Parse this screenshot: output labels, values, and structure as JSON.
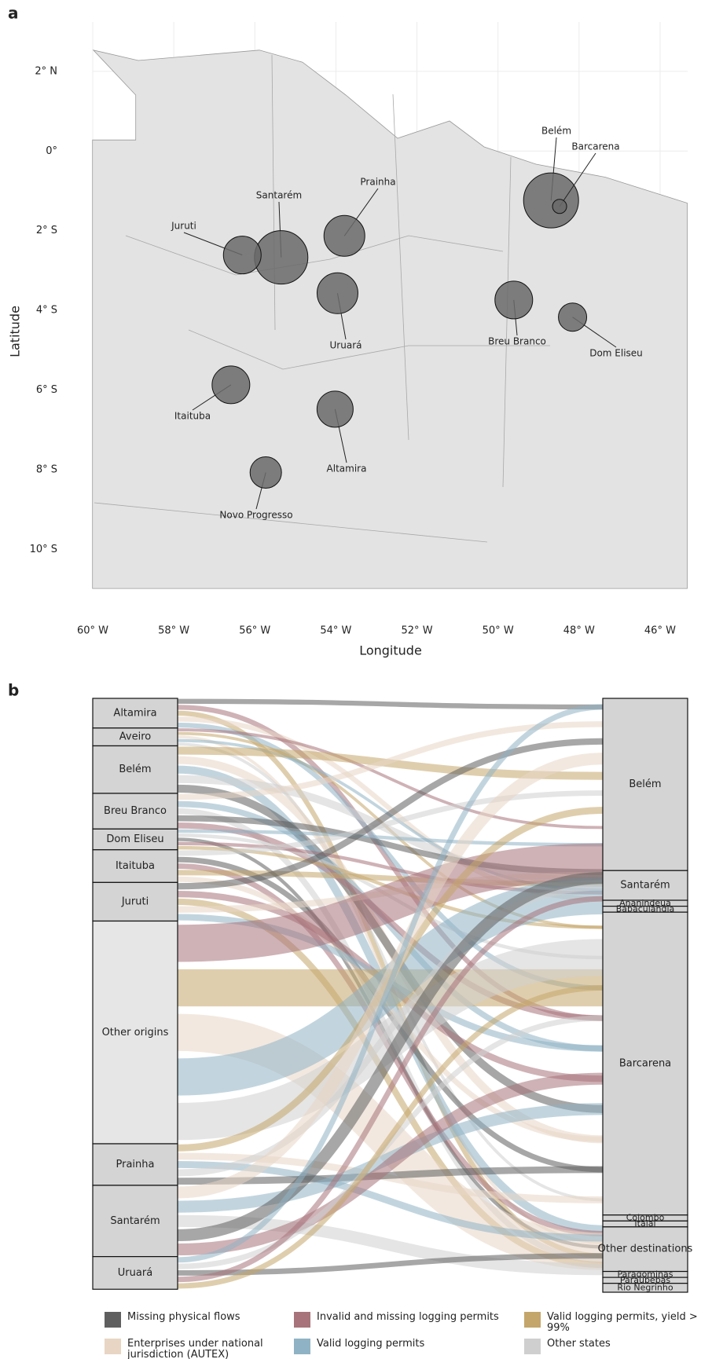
{
  "panel_a": {
    "type": "map",
    "panel_label": "a",
    "xlabel": "Longitude",
    "ylabel": "Latitude",
    "xlim": [
      -60,
      -45.32
    ],
    "ylim": [
      -10.98,
      3.24
    ],
    "grid": true,
    "xticks": [
      {
        "value": -60,
        "label": "60° W"
      },
      {
        "value": -58,
        "label": "58° W"
      },
      {
        "value": -56,
        "label": "56° W"
      },
      {
        "value": -54,
        "label": "54° W"
      },
      {
        "value": -52,
        "label": "52° W"
      },
      {
        "value": -50,
        "label": "50° W"
      },
      {
        "value": -48,
        "label": "48° W"
      },
      {
        "value": -46,
        "label": "46° W"
      }
    ],
    "yticks": [
      {
        "value": 2,
        "label": "2° N"
      },
      {
        "value": 0,
        "label": "0°"
      },
      {
        "value": -2,
        "label": "2° S"
      },
      {
        "value": -4,
        "label": "4° S"
      },
      {
        "value": -6,
        "label": "6° S"
      },
      {
        "value": -8,
        "label": "8° S"
      },
      {
        "value": -10,
        "label": "10° S"
      }
    ],
    "cities": [
      {
        "label": "Belém",
        "lon": -48.69,
        "lat": -1.24
      },
      {
        "label": "Barcarena",
        "lon": -48.48,
        "lat": -1.39
      },
      {
        "label": "Prainha",
        "lon": -53.79,
        "lat": -2.13
      },
      {
        "label": "Santarém",
        "lon": -55.35,
        "lat": -2.67
      },
      {
        "label": "Juruti",
        "lon": -56.31,
        "lat": -2.61
      },
      {
        "label": "Uruará",
        "lon": -53.96,
        "lat": -3.57
      },
      {
        "label": "Breu Branco",
        "lon": -49.61,
        "lat": -3.74
      },
      {
        "label": "Dom Eliseu",
        "lon": -48.16,
        "lat": -4.17
      },
      {
        "label": "Itaituba",
        "lon": -56.59,
        "lat": -5.87
      },
      {
        "label": "Altamira",
        "lon": -54.02,
        "lat": -6.48
      },
      {
        "label": "Novo Progresso",
        "lon": -55.73,
        "lat": -8.07
      }
    ]
  },
  "panel_b": {
    "type": "alluvial",
    "panel_label": "b",
    "origins": [
      {
        "label": "Altamira",
        "share": 5
      },
      {
        "label": "Aveiro",
        "share": 3
      },
      {
        "label": "Belém",
        "share": 8
      },
      {
        "label": "Breu Branco",
        "share": 6
      },
      {
        "label": "Dom Eliseu",
        "share": 3.5
      },
      {
        "label": "Itaituba",
        "share": 5.5
      },
      {
        "label": "Juruti",
        "share": 6.5
      },
      {
        "label": "Other origins",
        "share": 37.5
      },
      {
        "label": "Prainha",
        "share": 7
      },
      {
        "label": "Santarém",
        "share": 12
      },
      {
        "label": "Uruará",
        "share": 5.5
      }
    ],
    "destinations": [
      {
        "label": "Belém",
        "share": 29
      },
      {
        "label": "Santarém",
        "share": 5
      },
      {
        "label": "Ananindeua",
        "share": 1
      },
      {
        "label": "Babaçulândia",
        "share": 1
      },
      {
        "label": "Barcarena",
        "share": 51
      },
      {
        "label": "Colombo",
        "share": 1
      },
      {
        "label": "Itajaí",
        "share": 1
      },
      {
        "label": "Other destinations",
        "share": 7.5
      },
      {
        "label": "Paragominas",
        "share": 1
      },
      {
        "label": "Paraupebas",
        "share": 1
      },
      {
        "label": "Rio Negrinho",
        "share": 1.5
      }
    ]
  },
  "legend": [
    {
      "label": "Missing physical flows",
      "color": "#5f5f5f"
    },
    {
      "label": "Invalid and missing logging permits",
      "color": "#a8737a"
    },
    {
      "label": "Valid logging permits, yield > 99%",
      "color": "#c4a66a"
    },
    {
      "label": "Enterprises under national jurisdiction (AUTEX)",
      "color": "#e8d5c4"
    },
    {
      "label": "Valid logging permits",
      "color": "#8fb3c4"
    },
    {
      "label": "Other states",
      "color": "#cfcfcf"
    }
  ]
}
